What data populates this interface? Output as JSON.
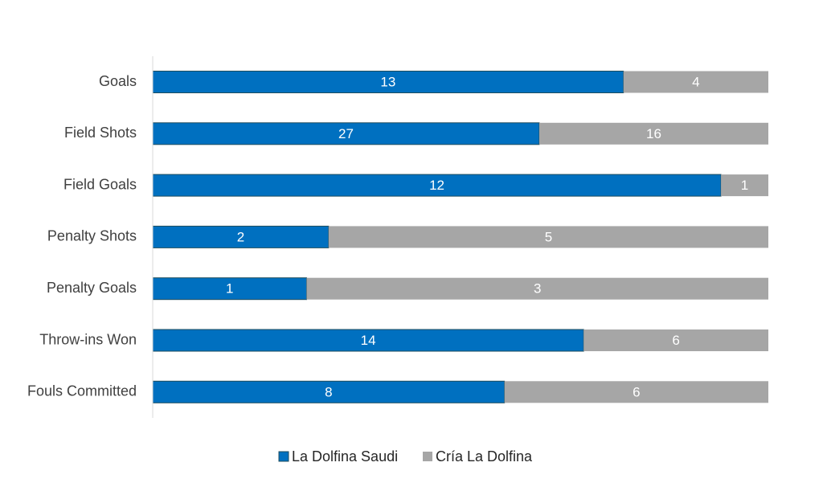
{
  "chart_data": {
    "type": "bar",
    "orientation": "horizontal",
    "stacking": "percent",
    "title": "",
    "xlabel": "",
    "ylabel": "",
    "grid": false,
    "legend_position": "bottom",
    "categories": [
      "Goals",
      "Field Shots",
      "Field Goals",
      "Penalty Shots",
      "Penalty Goals",
      "Throw-ins Won",
      "Fouls Committed"
    ],
    "series": [
      {
        "name": "La Dolfina Saudi",
        "color": "#0070C0",
        "values": [
          13,
          27,
          12,
          2,
          1,
          14,
          8
        ]
      },
      {
        "name": "Cría La Dolfina",
        "color": "#A6A6A6",
        "values": [
          4,
          16,
          1,
          5,
          3,
          6,
          6
        ]
      }
    ]
  }
}
